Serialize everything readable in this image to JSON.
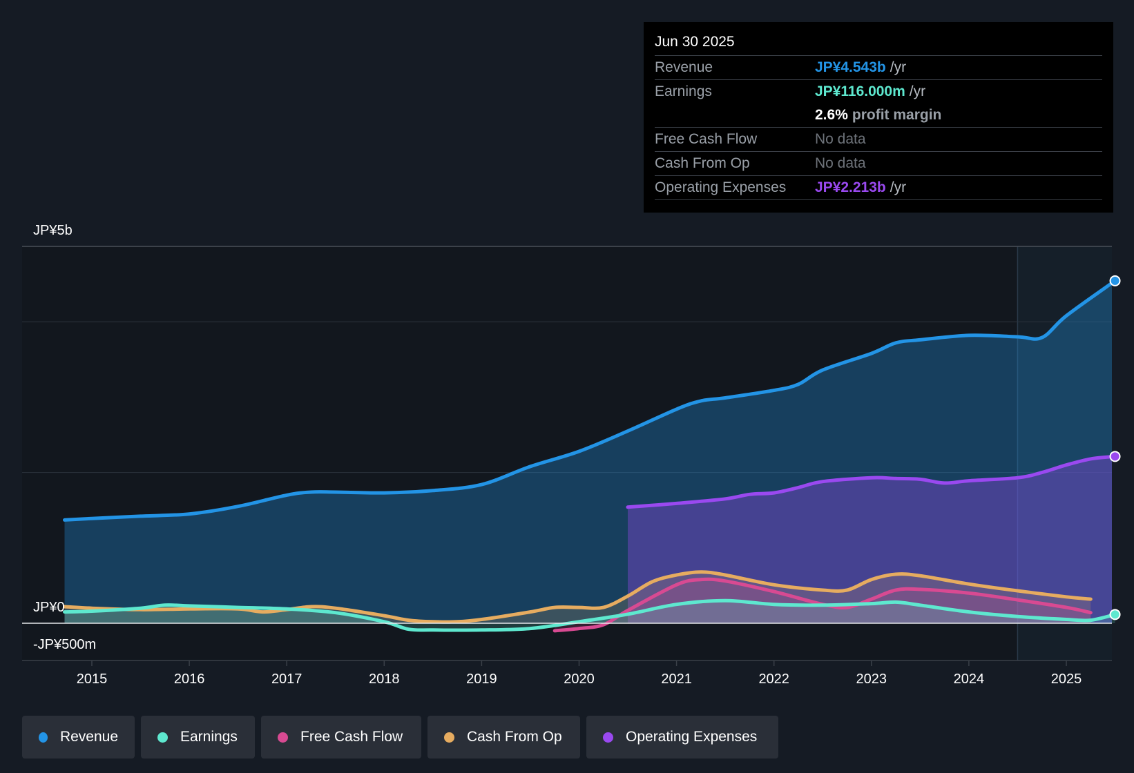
{
  "chart_data": {
    "type": "area",
    "y_unit": "JP¥",
    "ylim": [
      -500000000,
      5000000000
    ],
    "y_tick_labels": [
      "JP¥5b",
      "JP¥0",
      "-JP¥500m"
    ],
    "x_tick_labels": [
      "2015",
      "2016",
      "2017",
      "2018",
      "2019",
      "2020",
      "2021",
      "2022",
      "2023",
      "2024",
      "2025"
    ],
    "x_range": [
      2014.3,
      2025.5
    ],
    "forecast_region_start": 2024.5,
    "series": [
      {
        "name": "Revenue",
        "color": "#2394e6",
        "points": [
          [
            2014.72,
            1370000000.0
          ],
          [
            2015.0,
            1390000000.0
          ],
          [
            2015.5,
            1420000000.0
          ],
          [
            2016.0,
            1450000000.0
          ],
          [
            2016.5,
            1550000000.0
          ],
          [
            2017.0,
            1700000000.0
          ],
          [
            2017.25,
            1740000000.0
          ],
          [
            2017.5,
            1740000000.0
          ],
          [
            2018.0,
            1730000000.0
          ],
          [
            2018.5,
            1760000000.0
          ],
          [
            2019.0,
            1840000000.0
          ],
          [
            2019.5,
            2080000000.0
          ],
          [
            2020.0,
            2280000000.0
          ],
          [
            2020.5,
            2550000000.0
          ],
          [
            2021.0,
            2840000000.0
          ],
          [
            2021.25,
            2950000000.0
          ],
          [
            2021.5,
            2990000000.0
          ],
          [
            2022.0,
            3090000000.0
          ],
          [
            2022.25,
            3170000000.0
          ],
          [
            2022.5,
            3360000000.0
          ],
          [
            2023.0,
            3580000000.0
          ],
          [
            2023.25,
            3720000000.0
          ],
          [
            2023.5,
            3760000000.0
          ],
          [
            2024.0,
            3820000000.0
          ],
          [
            2024.5,
            3800000000.0
          ],
          [
            2024.75,
            3790000000.0
          ],
          [
            2025.0,
            4080000000.0
          ],
          [
            2025.5,
            4543000000.0
          ]
        ]
      },
      {
        "name": "Earnings",
        "color": "#5ee8cf",
        "points": [
          [
            2014.72,
            150000000.0
          ],
          [
            2015.0,
            160000000.0
          ],
          [
            2015.5,
            200000000.0
          ],
          [
            2015.75,
            240000000.0
          ],
          [
            2016.0,
            230000000.0
          ],
          [
            2016.5,
            210000000.0
          ],
          [
            2017.0,
            190000000.0
          ],
          [
            2017.5,
            140000000.0
          ],
          [
            2018.0,
            20000000.0
          ],
          [
            2018.25,
            -80000000.0
          ],
          [
            2018.5,
            -90000000.0
          ],
          [
            2019.0,
            -90000000.0
          ],
          [
            2019.5,
            -70000000.0
          ],
          [
            2020.0,
            20000000.0
          ],
          [
            2020.5,
            120000000.0
          ],
          [
            2021.0,
            250000000.0
          ],
          [
            2021.5,
            300000000.0
          ],
          [
            2022.0,
            250000000.0
          ],
          [
            2022.5,
            240000000.0
          ],
          [
            2023.0,
            260000000.0
          ],
          [
            2023.25,
            280000000.0
          ],
          [
            2023.5,
            240000000.0
          ],
          [
            2024.0,
            150000000.0
          ],
          [
            2024.5,
            90000000.0
          ],
          [
            2025.0,
            50000000.0
          ],
          [
            2025.25,
            40000000.0
          ],
          [
            2025.5,
            116000000.0
          ]
        ]
      },
      {
        "name": "Free Cash Flow",
        "color": "#d84a92",
        "points": [
          [
            2019.75,
            -100000000.0
          ],
          [
            2020.0,
            -70000000.0
          ],
          [
            2020.25,
            -20000000.0
          ],
          [
            2020.5,
            170000000.0
          ],
          [
            2021.0,
            510000000.0
          ],
          [
            2021.25,
            580000000.0
          ],
          [
            2021.5,
            560000000.0
          ],
          [
            2022.0,
            420000000.0
          ],
          [
            2022.5,
            250000000.0
          ],
          [
            2022.75,
            210000000.0
          ],
          [
            2023.0,
            320000000.0
          ],
          [
            2023.25,
            440000000.0
          ],
          [
            2023.5,
            450000000.0
          ],
          [
            2024.0,
            400000000.0
          ],
          [
            2024.5,
            310000000.0
          ],
          [
            2025.0,
            210000000.0
          ],
          [
            2025.25,
            140000000.0
          ]
        ]
      },
      {
        "name": "Cash From Op",
        "color": "#e6ac60",
        "points": [
          [
            2014.72,
            220000000.0
          ],
          [
            2015.0,
            200000000.0
          ],
          [
            2015.5,
            180000000.0
          ],
          [
            2016.0,
            190000000.0
          ],
          [
            2016.5,
            190000000.0
          ],
          [
            2016.75,
            150000000.0
          ],
          [
            2017.0,
            180000000.0
          ],
          [
            2017.25,
            220000000.0
          ],
          [
            2017.5,
            200000000.0
          ],
          [
            2018.0,
            100000000.0
          ],
          [
            2018.25,
            40000000.0
          ],
          [
            2018.5,
            20000000.0
          ],
          [
            2018.75,
            20000000.0
          ],
          [
            2019.0,
            50000000.0
          ],
          [
            2019.5,
            150000000.0
          ],
          [
            2019.75,
            210000000.0
          ],
          [
            2020.0,
            210000000.0
          ],
          [
            2020.25,
            210000000.0
          ],
          [
            2020.5,
            360000000.0
          ],
          [
            2020.75,
            550000000.0
          ],
          [
            2021.0,
            640000000.0
          ],
          [
            2021.25,
            680000000.0
          ],
          [
            2021.5,
            640000000.0
          ],
          [
            2022.0,
            510000000.0
          ],
          [
            2022.5,
            440000000.0
          ],
          [
            2022.75,
            440000000.0
          ],
          [
            2023.0,
            580000000.0
          ],
          [
            2023.25,
            650000000.0
          ],
          [
            2023.5,
            630000000.0
          ],
          [
            2024.0,
            520000000.0
          ],
          [
            2024.5,
            430000000.0
          ],
          [
            2025.0,
            350000000.0
          ],
          [
            2025.25,
            320000000.0
          ]
        ]
      },
      {
        "name": "Operating Expenses",
        "color": "#9a49f0",
        "points": [
          [
            2020.5,
            1540000000.0
          ],
          [
            2021.0,
            1590000000.0
          ],
          [
            2021.5,
            1650000000.0
          ],
          [
            2021.75,
            1710000000.0
          ],
          [
            2022.0,
            1730000000.0
          ],
          [
            2022.25,
            1800000000.0
          ],
          [
            2022.5,
            1880000000.0
          ],
          [
            2023.0,
            1930000000.0
          ],
          [
            2023.25,
            1920000000.0
          ],
          [
            2023.5,
            1910000000.0
          ],
          [
            2023.75,
            1860000000.0
          ],
          [
            2024.0,
            1890000000.0
          ],
          [
            2024.5,
            1930000000.0
          ],
          [
            2024.75,
            2000000000.0
          ],
          [
            2025.0,
            2100000000.0
          ],
          [
            2025.25,
            2180000000.0
          ],
          [
            2025.5,
            2213000000.0
          ]
        ]
      }
    ]
  },
  "tooltip": {
    "date": "Jun 30 2025",
    "revenue_label": "Revenue",
    "revenue_value": "JP¥4.543b",
    "revenue_unit": "/yr",
    "earnings_label": "Earnings",
    "earnings_value": "JP¥116.000m",
    "earnings_unit": "/yr",
    "margin_value": "2.6%",
    "margin_unit": "profit margin",
    "fcf_label": "Free Cash Flow",
    "fcf_value": "No data",
    "cfo_label": "Cash From Op",
    "cfo_value": "No data",
    "opex_label": "Operating Expenses",
    "opex_value": "JP¥2.213b",
    "opex_unit": "/yr"
  },
  "colors": {
    "revenue": "#2394e6",
    "earnings": "#5ee8cf",
    "fcf": "#d84a92",
    "cfo": "#e6ac60",
    "opex": "#9a49f0"
  },
  "legend": [
    {
      "label": "Revenue",
      "color": "#2394e6"
    },
    {
      "label": "Earnings",
      "color": "#5ee8cf"
    },
    {
      "label": "Free Cash Flow",
      "color": "#d84a92"
    },
    {
      "label": "Cash From Op",
      "color": "#e6ac60"
    },
    {
      "label": "Operating Expenses",
      "color": "#9a49f0"
    }
  ]
}
